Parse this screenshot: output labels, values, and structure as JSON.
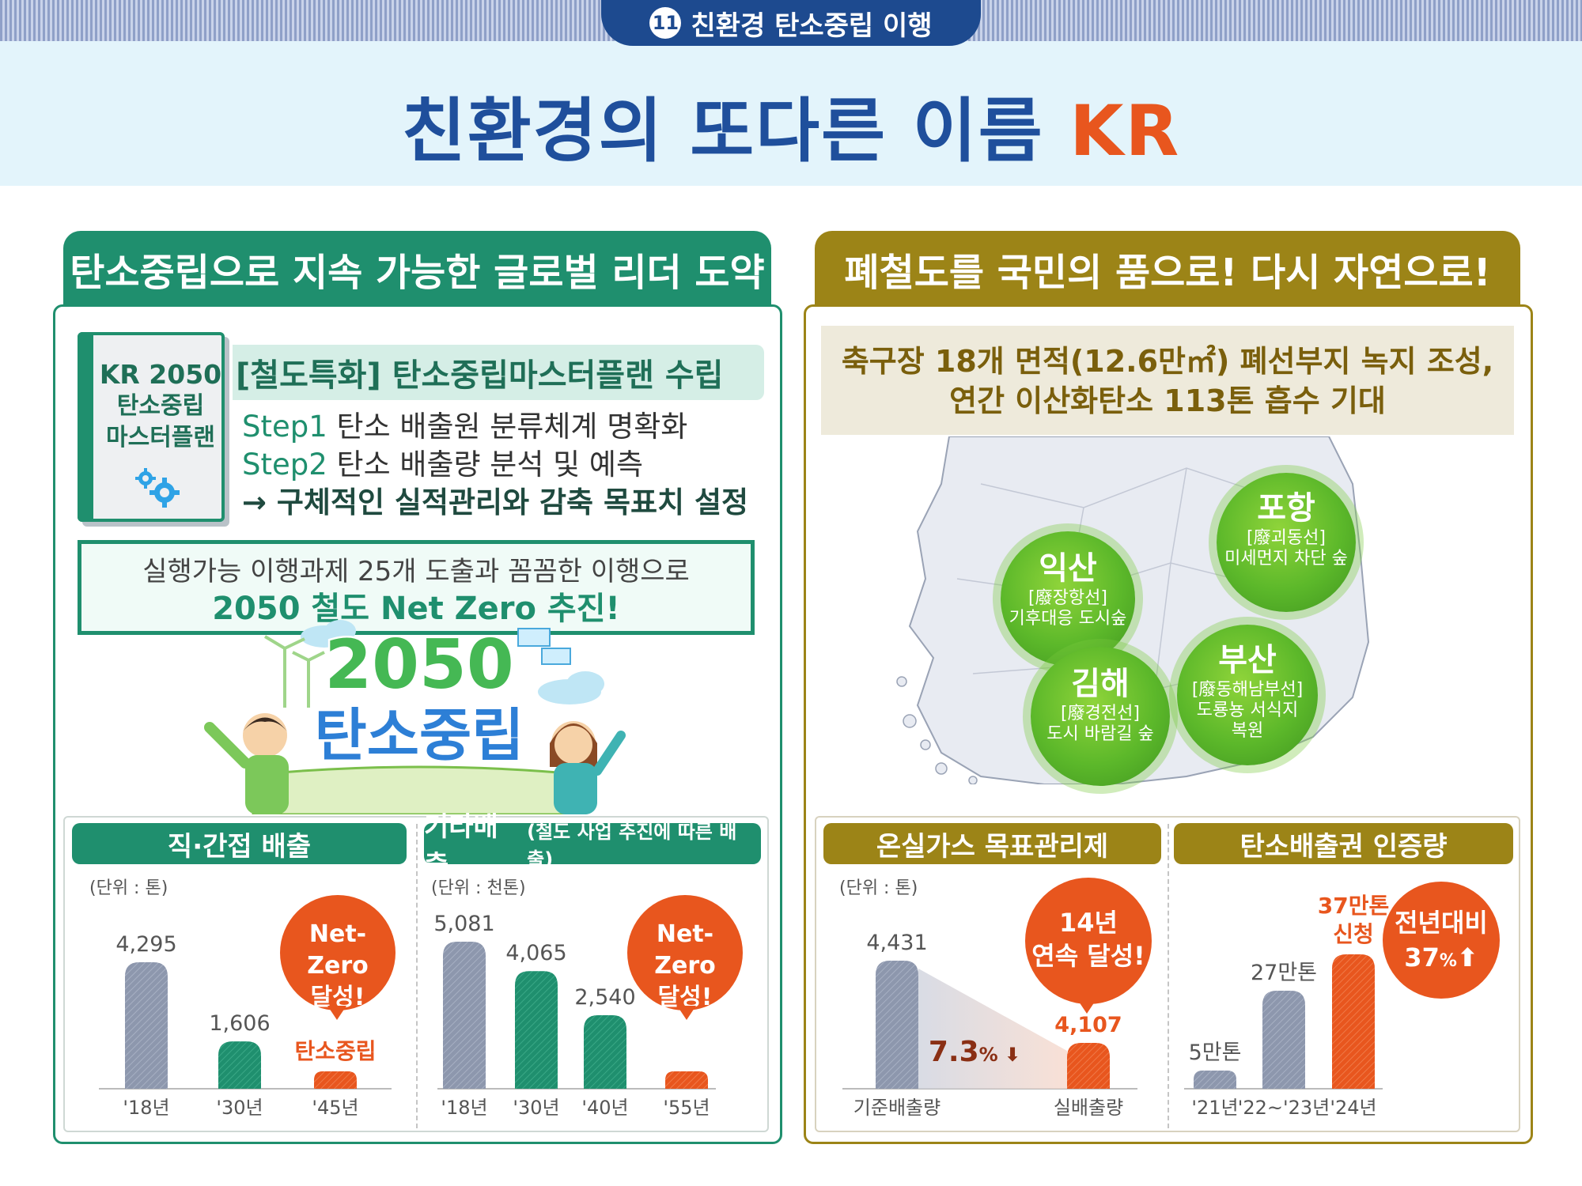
{
  "header": {
    "section_number": "11",
    "section_title": "친환경 탄소중립 이행",
    "main_title": "친환경의 또다른 이름 ",
    "main_title_accent": "KR"
  },
  "left_panel": {
    "title": "탄소중립으로 지속 가능한 글로벌 리더 도약",
    "book": {
      "line1": "KR 2050",
      "line2": "탄소중립",
      "line3": "마스터플랜",
      "icon": "gear-icon"
    },
    "plan_heading": "[철도특화] 탄소중립마스터플랜 수립",
    "steps": [
      {
        "label": "Step1",
        "text": " 탄소 배출원 분류체계 명확화"
      },
      {
        "label": "Step2",
        "text": " 탄소 배출량 분석 및 예측"
      }
    ],
    "goal": "→ 구체적인 실적관리와 감축 목표치 설정",
    "box_line1": "실행가능 이행과제 25개 도출과 꼼꼼한 이행으로",
    "box_line2": "2050 철도 Net Zero 추진!",
    "illustration": {
      "line1": "2050",
      "line2": "탄소중립"
    }
  },
  "right_panel": {
    "title": "폐철도를 국민의 품으로! 다시 자연으로!",
    "headline1": "축구장 18개 면적(12.6만㎡) 폐선부지 녹지 조성,",
    "headline2": "연간 이산화탄소 113톤 흡수 기대",
    "sites": [
      {
        "city": "포항",
        "line": "[廢괴동선]",
        "desc1": "미세먼지 차단 숲",
        "desc2": ""
      },
      {
        "city": "익산",
        "line": "[廢장항선]",
        "desc1": "기후대응 도시숲",
        "desc2": ""
      },
      {
        "city": "김해",
        "line": "[廢경전선]",
        "desc1": "도시 바람길 숲",
        "desc2": ""
      },
      {
        "city": "부산",
        "line": "[廢동해남부선]",
        "desc1": "도룡뇽 서식지",
        "desc2": "복원"
      }
    ]
  },
  "colors": {
    "green": "#1f8f6e",
    "olive": "#9c8417",
    "orange": "#e8561e",
    "gray_bar": "#8d97ad",
    "navy": "#1d4a8f"
  },
  "chart_data": [
    {
      "type": "bar",
      "title": "직·간접 배출",
      "unit": "(단위 : 톤)",
      "categories": [
        "'18년",
        "'30년",
        "'45년"
      ],
      "values": [
        4295,
        1606,
        null
      ],
      "value_labels": [
        "4,295",
        "1,606",
        "탄소중립"
      ],
      "bubble": [
        "Net-Zero",
        "달성!"
      ]
    },
    {
      "type": "bar",
      "title": "기타배출",
      "title_note": "(철도 사업 추진에 따른 배출)",
      "unit": "(단위 : 천톤)",
      "categories": [
        "'18년",
        "'30년",
        "'40년",
        "'55년"
      ],
      "values": [
        5081,
        4065,
        2540,
        null
      ],
      "value_labels": [
        "5,081",
        "4,065",
        "2,540",
        ""
      ],
      "bubble": [
        "Net-Zero",
        "달성!"
      ]
    },
    {
      "type": "bar",
      "title": "온실가스 목표관리제",
      "unit": "(단위 : 톤)",
      "categories": [
        "기준배출량",
        "실배출량"
      ],
      "values": [
        4431,
        4107
      ],
      "value_labels": [
        "4,431",
        "4,107"
      ],
      "change_label": "7.3",
      "change_unit": "%",
      "bubble": [
        "14년",
        "연속 달성!"
      ]
    },
    {
      "type": "bar",
      "title": "탄소배출권 인증량",
      "categories": [
        "'21년",
        "'22~'23년",
        "'24년"
      ],
      "values": [
        5,
        27,
        37
      ],
      "value_labels": [
        "5만톤",
        "27만톤",
        "37만톤"
      ],
      "value_note": "신청",
      "bubble": [
        "전년대비",
        "37"
      ],
      "bubble_unit": "%"
    }
  ]
}
